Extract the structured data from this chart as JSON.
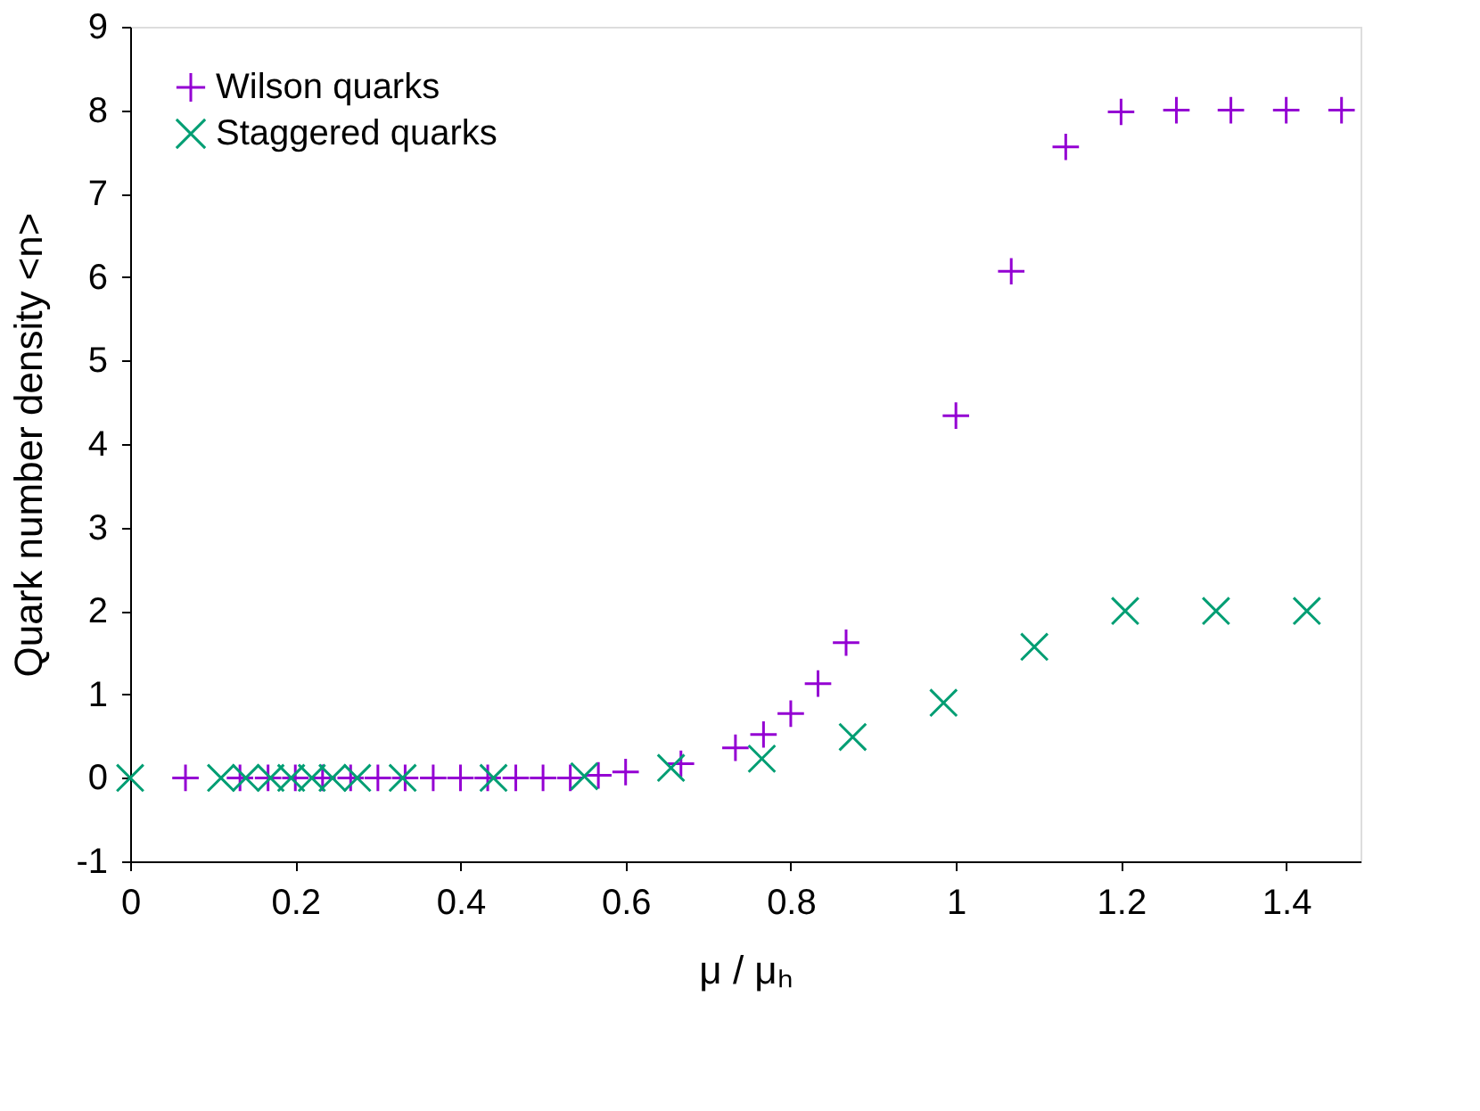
{
  "chart_data": {
    "type": "scatter",
    "xlabel": "μ / μₕ",
    "ylabel": "Quark number density <n>",
    "xlim": [
      0,
      1.49
    ],
    "xticks": [
      0,
      0.2,
      0.4,
      0.6,
      0.8,
      1,
      1.2,
      1.4
    ],
    "ylim": [
      -1,
      9
    ],
    "yticks": [
      -1,
      0,
      1,
      2,
      3,
      4,
      5,
      6,
      7,
      8,
      9
    ],
    "grid": false,
    "legend": "top left",
    "series": [
      {
        "name": "Wilson quarks",
        "color": "#9400d3",
        "marker": "cross",
        "x": [
          0.067,
          0.133,
          0.167,
          0.2,
          0.233,
          0.267,
          0.3,
          0.333,
          0.367,
          0.4,
          0.433,
          0.467,
          0.5,
          0.533,
          0.567,
          0.6,
          0.667,
          0.733,
          0.767,
          0.8,
          0.833,
          0.867,
          1.0,
          1.067,
          1.133,
          1.2,
          1.267,
          1.333,
          1.4,
          1.467
        ],
        "values": [
          0,
          0,
          0,
          0,
          0,
          0,
          0,
          0,
          0,
          0,
          0,
          0,
          0,
          0,
          0.03,
          0.07,
          0.17,
          0.36,
          0.52,
          0.77,
          1.13,
          1.62,
          4.34,
          6.07,
          7.56,
          7.98,
          8,
          8,
          8,
          8
        ]
      },
      {
        "name": "Staggered quarks",
        "color": "#009e73",
        "marker": "cross",
        "x": [
          0,
          0.11,
          0.14,
          0.17,
          0.195,
          0.22,
          0.245,
          0.275,
          0.33,
          0.44,
          0.55,
          0.655,
          0.765,
          0.875,
          0.985,
          1.095,
          1.205,
          1.315,
          1.425
        ],
        "values": [
          0,
          0,
          0,
          0,
          0,
          0,
          0,
          0,
          0,
          0,
          0.02,
          0.12,
          0.23,
          0.49,
          0.9,
          1.57,
          2.0,
          2.0,
          2.0
        ]
      }
    ]
  }
}
